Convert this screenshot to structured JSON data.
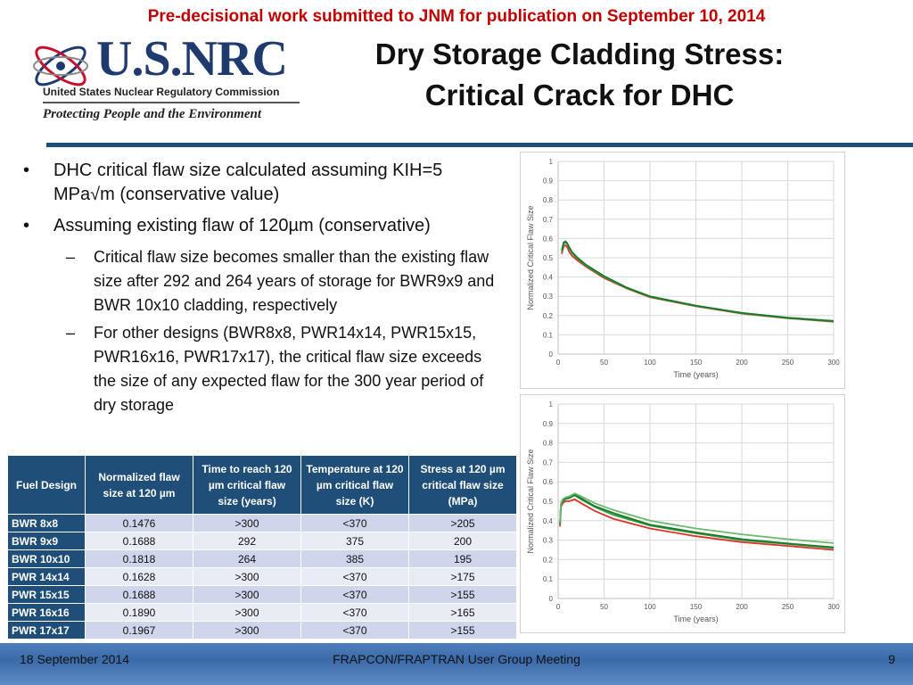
{
  "banner": "Pre-decisional work submitted to JNM for publication on September 10, 2014",
  "logo": {
    "big_text": "U.S.NRC",
    "agency": "United States Nuclear Regulatory Commission",
    "tagline": "Protecting People and the Environment"
  },
  "title": {
    "line1": "Dry Storage Cladding Stress:",
    "line2": "Critical Crack for DHC"
  },
  "bullets": {
    "b1": "DHC critical flaw size calculated assuming KIH=5 MPa√m (conservative value)",
    "b2": "Assuming existing flaw of 120µm (conservative)",
    "sub1": "Critical flaw size becomes smaller than the existing flaw size after 292 and 264 years of storage for BWR9x9 and BWR 10x10 cladding, respectively",
    "sub2": "For other designs (BWR8x8, PWR14x14, PWR15x15, PWR16x16, PWR17x17), the critical flaw size exceeds the size of any expected flaw for the 300 year period of dry storage",
    "bullet_mark": "•",
    "dash_mark": "–"
  },
  "table": {
    "headers": [
      "Fuel Design",
      "Normalized flaw size at 120 µm",
      "Time to reach 120 µm critical flaw size (years)",
      "Temperature at 120 µm critical flaw size (K)",
      "Stress at 120 µm critical flaw size (MPa)"
    ],
    "rows": [
      [
        "BWR 8x8",
        "0.1476",
        ">300",
        "<370",
        ">205"
      ],
      [
        "BWR 9x9",
        "0.1688",
        "292",
        "375",
        "200"
      ],
      [
        "BWR 10x10",
        "0.1818",
        "264",
        "385",
        "195"
      ],
      [
        "PWR 14x14",
        "0.1628",
        ">300",
        "<370",
        ">175"
      ],
      [
        "PWR 15x15",
        "0.1688",
        ">300",
        "<370",
        ">155"
      ],
      [
        "PWR 16x16",
        "0.1890",
        ">300",
        "<370",
        ">165"
      ],
      [
        "PWR 17x17",
        "0.1967",
        ">300",
        "<370",
        ">155"
      ]
    ]
  },
  "chart_data": [
    {
      "type": "line",
      "xlabel": "Time (years)",
      "ylabel": "Normalized Critical Flaw Size",
      "xlim": [
        0,
        300
      ],
      "ylim": [
        0,
        1
      ],
      "xticks": [
        "0",
        "50",
        "100",
        "150",
        "200",
        "250",
        "300"
      ],
      "yticks": [
        "0",
        "0.1",
        "0.2",
        "0.3",
        "0.4",
        "0.5",
        "0.6",
        "0.7",
        "0.8",
        "0.9",
        "1"
      ],
      "grid": true,
      "series": [
        {
          "color": "#e0302a",
          "x": [
            4,
            6,
            8,
            10,
            12,
            15,
            20,
            30,
            50,
            75,
            100,
            150,
            200,
            250,
            300
          ],
          "y": [
            0.52,
            0.56,
            0.565,
            0.555,
            0.53,
            0.51,
            0.49,
            0.455,
            0.395,
            0.34,
            0.295,
            0.248,
            0.21,
            0.186,
            0.168
          ]
        },
        {
          "color": "#2e9e3e",
          "x": [
            4,
            6,
            8,
            10,
            12,
            15,
            20,
            30,
            50,
            75,
            100,
            150,
            200,
            250,
            300
          ],
          "y": [
            0.53,
            0.575,
            0.58,
            0.57,
            0.55,
            0.525,
            0.5,
            0.46,
            0.4,
            0.343,
            0.297,
            0.25,
            0.212,
            0.187,
            0.17
          ]
        },
        {
          "color": "#1a7a2a",
          "x": [
            4,
            6,
            8,
            10,
            12,
            15,
            20,
            30,
            50,
            75,
            100,
            150,
            200,
            250,
            300
          ],
          "y": [
            0.54,
            0.58,
            0.585,
            0.575,
            0.555,
            0.53,
            0.505,
            0.465,
            0.405,
            0.345,
            0.3,
            0.252,
            0.214,
            0.189,
            0.172
          ]
        }
      ]
    },
    {
      "type": "line",
      "xlabel": "Time (years)",
      "ylabel": "Normalized Critical Flaw Size",
      "xlim": [
        0,
        300
      ],
      "ylim": [
        0,
        1
      ],
      "xticks": [
        "0",
        "50",
        "100",
        "150",
        "200",
        "250",
        "300"
      ],
      "yticks": [
        "0",
        "0.1",
        "0.2",
        "0.3",
        "0.4",
        "0.5",
        "0.6",
        "0.7",
        "0.8",
        "0.9",
        "1"
      ],
      "grid": true,
      "series": [
        {
          "color": "#e0302a",
          "x": [
            2,
            3,
            5,
            8,
            12,
            18,
            25,
            40,
            60,
            100,
            150,
            200,
            250,
            300
          ],
          "y": [
            0.37,
            0.47,
            0.49,
            0.5,
            0.5,
            0.51,
            0.49,
            0.45,
            0.41,
            0.36,
            0.32,
            0.29,
            0.27,
            0.25
          ]
        },
        {
          "color": "#2e9e3e",
          "x": [
            2,
            3,
            5,
            8,
            12,
            18,
            25,
            40,
            60,
            100,
            150,
            200,
            250,
            300
          ],
          "y": [
            0.38,
            0.48,
            0.5,
            0.51,
            0.515,
            0.53,
            0.51,
            0.47,
            0.43,
            0.375,
            0.335,
            0.3,
            0.28,
            0.26
          ]
        },
        {
          "color": "#1a7a2a",
          "x": [
            2,
            3,
            5,
            8,
            12,
            18,
            25,
            40,
            60,
            100,
            150,
            200,
            250,
            300
          ],
          "y": [
            0.385,
            0.485,
            0.505,
            0.515,
            0.52,
            0.535,
            0.515,
            0.475,
            0.44,
            0.38,
            0.34,
            0.305,
            0.283,
            0.263
          ]
        },
        {
          "color": "#6ab86a",
          "x": [
            2,
            3,
            5,
            8,
            12,
            18,
            25,
            40,
            60,
            100,
            150,
            200,
            250,
            300
          ],
          "y": [
            0.39,
            0.49,
            0.51,
            0.52,
            0.525,
            0.54,
            0.525,
            0.49,
            0.455,
            0.4,
            0.36,
            0.33,
            0.305,
            0.285
          ]
        }
      ]
    }
  ],
  "footer": {
    "date": "18 September 2014",
    "meeting": "FRAPCON/FRAPTRAN User Group Meeting",
    "page": "9"
  }
}
